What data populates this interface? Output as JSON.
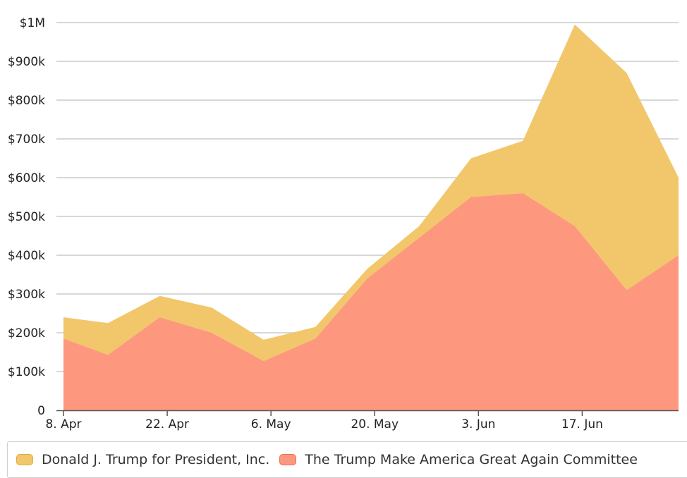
{
  "colors": {
    "series1": "#f2c66b",
    "series1_border": "#e3a93a",
    "series2": "#fd977d",
    "series2_border": "#e96f54",
    "grid": "#cccccc",
    "axis": "#555555"
  },
  "chart_data": {
    "type": "area",
    "stacked": true,
    "grid": true,
    "legend_position": "bottom",
    "x_ticks": [
      {
        "x": "2019-04-08",
        "label": "8. Apr"
      },
      {
        "x": "2019-04-22",
        "label": "22. Apr"
      },
      {
        "x": "2019-05-06",
        "label": "6. May"
      },
      {
        "x": "2019-05-20",
        "label": "20. May"
      },
      {
        "x": "2019-06-03",
        "label": "3. Jun"
      },
      {
        "x": "2019-06-17",
        "label": "17. Jun"
      }
    ],
    "x_range": [
      "2019-04-08",
      "2019-06-30"
    ],
    "x": [
      "2019-04-08",
      "2019-04-14",
      "2019-04-21",
      "2019-04-28",
      "2019-05-05",
      "2019-05-12",
      "2019-05-19",
      "2019-05-26",
      "2019-06-02",
      "2019-06-09",
      "2019-06-16",
      "2019-06-23",
      "2019-06-30"
    ],
    "y_ticks": [
      {
        "value": 0,
        "label": "0"
      },
      {
        "value": 100000,
        "label": "$100k"
      },
      {
        "value": 200000,
        "label": "$200k"
      },
      {
        "value": 300000,
        "label": "$300k"
      },
      {
        "value": 400000,
        "label": "$400k"
      },
      {
        "value": 500000,
        "label": "$500k"
      },
      {
        "value": 600000,
        "label": "$600k"
      },
      {
        "value": 700000,
        "label": "$700k"
      },
      {
        "value": 800000,
        "label": "$800k"
      },
      {
        "value": 900000,
        "label": "$900k"
      },
      {
        "value": 1000000,
        "label": "$1M"
      }
    ],
    "ylim": [
      0,
      1000000
    ],
    "series": [
      {
        "name": "Donald J. Trump for President, Inc.",
        "values": [
          55000,
          82000,
          55000,
          65000,
          55000,
          30000,
          25000,
          30000,
          100000,
          135000,
          520000,
          560000,
          200000
        ]
      },
      {
        "name": "The Trump Make America Great Again Committee",
        "values": [
          185000,
          143000,
          240000,
          200000,
          127000,
          185000,
          340000,
          445000,
          550000,
          560000,
          475000,
          310000,
          400000
        ]
      }
    ]
  }
}
